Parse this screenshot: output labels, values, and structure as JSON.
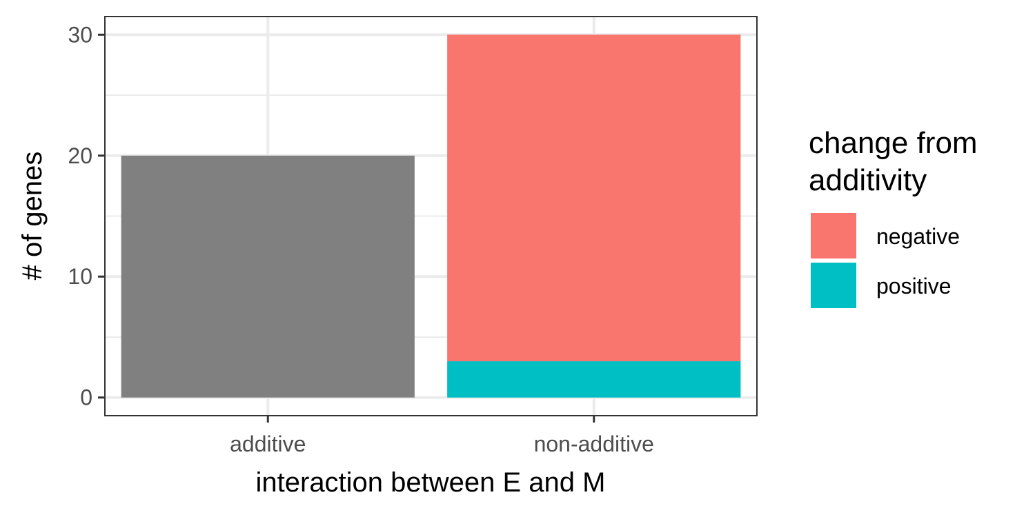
{
  "chart_data": {
    "type": "bar",
    "stacked": true,
    "categories": [
      "additive",
      "non-additive"
    ],
    "series": [
      {
        "name": "positive",
        "color": "#00BFC4",
        "values": [
          null,
          3
        ]
      },
      {
        "name": "negative",
        "color": "#F8766D",
        "values": [
          null,
          27
        ]
      },
      {
        "name": "",
        "color": "#808080",
        "values": [
          20,
          null
        ]
      }
    ],
    "xlabel": "interaction between E and M",
    "ylabel": "# of genes",
    "ylim": [
      -1.5,
      31.5
    ],
    "yticks": [
      0,
      10,
      20,
      30
    ],
    "ytick_labels": [
      "0",
      "10",
      "20",
      "30"
    ],
    "grid": true,
    "legend": {
      "title_lines": [
        "change from",
        "additivity"
      ],
      "placement": "right",
      "items": [
        {
          "label": "negative",
          "color": "#F8766D"
        },
        {
          "label": "positive",
          "color": "#00BFC4"
        }
      ]
    }
  }
}
